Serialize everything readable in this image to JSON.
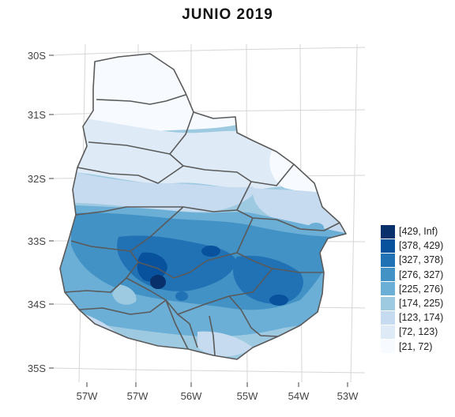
{
  "title": "JUNIO  2019",
  "map": {
    "type": "choropleth",
    "region_outline": "Uruguay departments",
    "lat_ticks": [
      "30S",
      "31S",
      "32S",
      "33S",
      "34S",
      "35S"
    ],
    "lon_ticks": [
      "57W",
      "57W",
      "56W",
      "55W",
      "54W",
      "53W"
    ],
    "border_color": "#5a5a5a",
    "graticule_color": "#d6d6d6"
  },
  "legend": {
    "items": [
      {
        "label": "[429, Inf)",
        "color": "#08306b"
      },
      {
        "label": "[378, 429)",
        "color": "#08519c"
      },
      {
        "label": "[327, 378)",
        "color": "#2171b5"
      },
      {
        "label": "[276, 327)",
        "color": "#4292c6"
      },
      {
        "label": "[225, 276)",
        "color": "#6baed6"
      },
      {
        "label": "[174, 225)",
        "color": "#9ecae1"
      },
      {
        "label": "[123, 174)",
        "color": "#c6dbef"
      },
      {
        "label": "[72, 123)",
        "color": "#deebf7"
      },
      {
        "label": "[21, 72)",
        "color": "#f7fbff"
      }
    ]
  }
}
